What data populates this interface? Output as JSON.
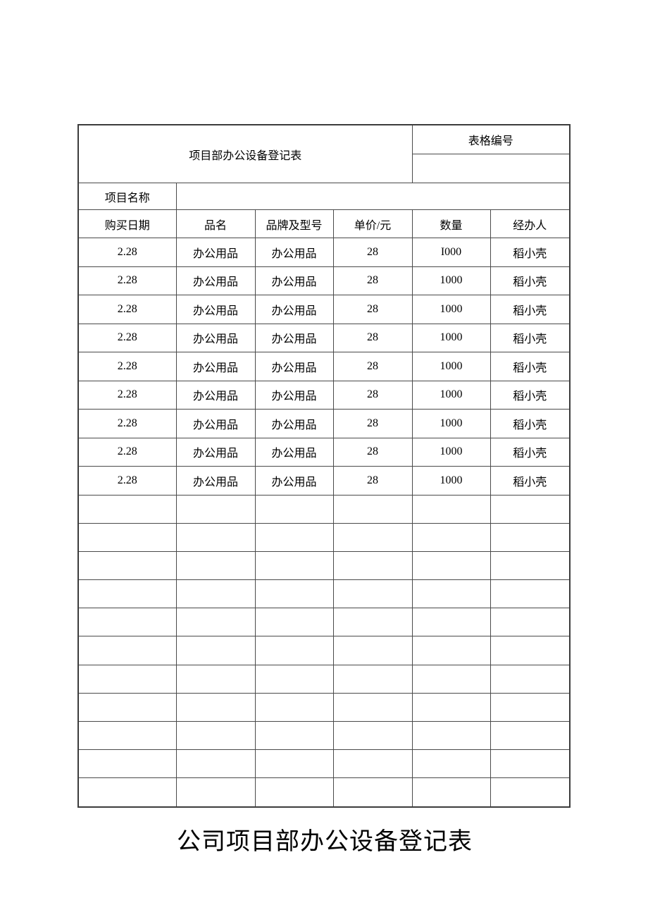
{
  "table": {
    "title": "项目部办公设备登记表",
    "form_number": {
      "label": "表格编号",
      "value": ""
    },
    "project_name": {
      "label": "项目名称",
      "value": ""
    },
    "columns": [
      "购买日期",
      "品名",
      "品牌及型号",
      "单价/元",
      "数量",
      "经办人"
    ],
    "rows": [
      [
        "2.28",
        "办公用品",
        "办公用品",
        "28",
        "I000",
        "稻小壳"
      ],
      [
        "2.28",
        "办公用品",
        "办公用品",
        "28",
        "1000",
        "稻小壳"
      ],
      [
        "2.28",
        "办公用品",
        "办公用品",
        "28",
        "1000",
        "稻小壳"
      ],
      [
        "2.28",
        "办公用品",
        "办公用品",
        "28",
        "1000",
        "稻小壳"
      ],
      [
        "2.28",
        "办公用品",
        "办公用品",
        "28",
        "1000",
        "稻小壳"
      ],
      [
        "2.28",
        "办公用品",
        "办公用品",
        "28",
        "1000",
        "稻小壳"
      ],
      [
        "2.28",
        "办公用品",
        "办公用品",
        "28",
        "1000",
        "稻小壳"
      ],
      [
        "2.28",
        "办公用品",
        "办公用品",
        "28",
        "1000",
        "稻小壳"
      ],
      [
        "2.28",
        "办公用品",
        "办公用品",
        "28",
        "1000",
        "稻小壳"
      ]
    ],
    "empty_row_count": 11
  },
  "footer": {
    "title": "公司项目部办公设备登记表"
  }
}
